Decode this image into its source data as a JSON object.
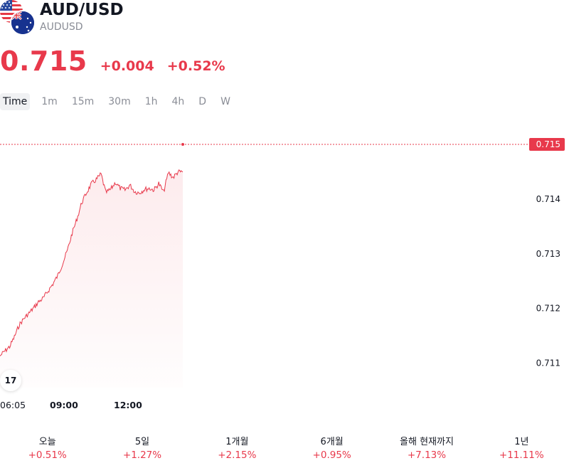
{
  "header": {
    "title": "AUD/USD",
    "symbol": "AUDUSD",
    "price": "0.715",
    "change": "+0.004",
    "change_pct": "+0.52%",
    "accent_color": "#e8394b"
  },
  "tabs": [
    {
      "label": "Time",
      "active": true
    },
    {
      "label": "1m"
    },
    {
      "label": "15m"
    },
    {
      "label": "30m"
    },
    {
      "label": "1h"
    },
    {
      "label": "4h"
    },
    {
      "label": "D"
    },
    {
      "label": "W"
    }
  ],
  "chart_data": {
    "type": "area",
    "series": [
      {
        "values": [
          0.71113,
          0.71122,
          0.7113,
          0.71148,
          0.7117,
          0.71182,
          0.71191,
          0.71201,
          0.71212,
          0.71219,
          0.71232,
          0.71245,
          0.7126,
          0.71282,
          0.71306,
          0.71338,
          0.71364,
          0.71394,
          0.71412,
          0.71428,
          0.71436,
          0.71446,
          0.71412,
          0.71418,
          0.71431,
          0.7142,
          0.71417,
          0.71426,
          0.71414,
          0.71412,
          0.71418,
          0.7142,
          0.71417,
          0.71429,
          0.71413,
          0.71449,
          0.7144,
          0.7145,
          0.7145
        ]
      }
    ],
    "ylim": [
      0.71055,
      0.7155
    ],
    "y_ticks": [
      "0.715",
      "0.714",
      "0.713",
      "0.712",
      "0.711"
    ],
    "x_ticks": [
      "06:05",
      "09:00",
      "12:00"
    ],
    "last_value_label": "0.715",
    "line_color": "#e8394b",
    "grid": false
  },
  "logo_text": "17",
  "periods": [
    {
      "label": "오늘",
      "value": "+0.51%"
    },
    {
      "label": "5일",
      "value": "+1.27%"
    },
    {
      "label": "1개월",
      "value": "+2.15%"
    },
    {
      "label": "6개월",
      "value": "+0.95%"
    },
    {
      "label": "올해 현재까지",
      "value": "+7.13%"
    },
    {
      "label": "1년",
      "value": "+11.11%"
    }
  ]
}
